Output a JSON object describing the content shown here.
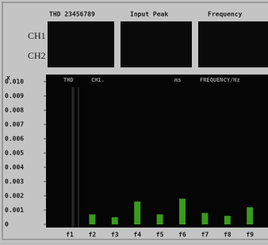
{
  "header": {
    "thd": "THD 23456789",
    "input_peak": "Input Peak",
    "frequency": "Frequency"
  },
  "channels": [
    "CH1",
    "CH2"
  ],
  "chart_data": {
    "type": "bar",
    "y_label": "x",
    "headers": [
      "THD",
      "CH1.",
      "ms",
      "FREQUENCY/Hz"
    ],
    "categories": [
      "f1",
      "f2",
      "f3",
      "f4",
      "f5",
      "f6",
      "f7",
      "f8",
      "f9"
    ],
    "values": [
      0,
      0.0007,
      0.0005,
      0.0016,
      0.0007,
      0.0018,
      0.0008,
      0.0006,
      0.0012
    ],
    "color": "#3a9a1e",
    "ylim": [
      0,
      0.01
    ],
    "yticks": [
      0,
      0.001,
      0.002,
      0.003,
      0.004,
      0.005,
      0.006,
      0.007,
      0.008,
      0.009,
      {
        "value": 0.01,
        "label": "0.010"
      }
    ]
  }
}
